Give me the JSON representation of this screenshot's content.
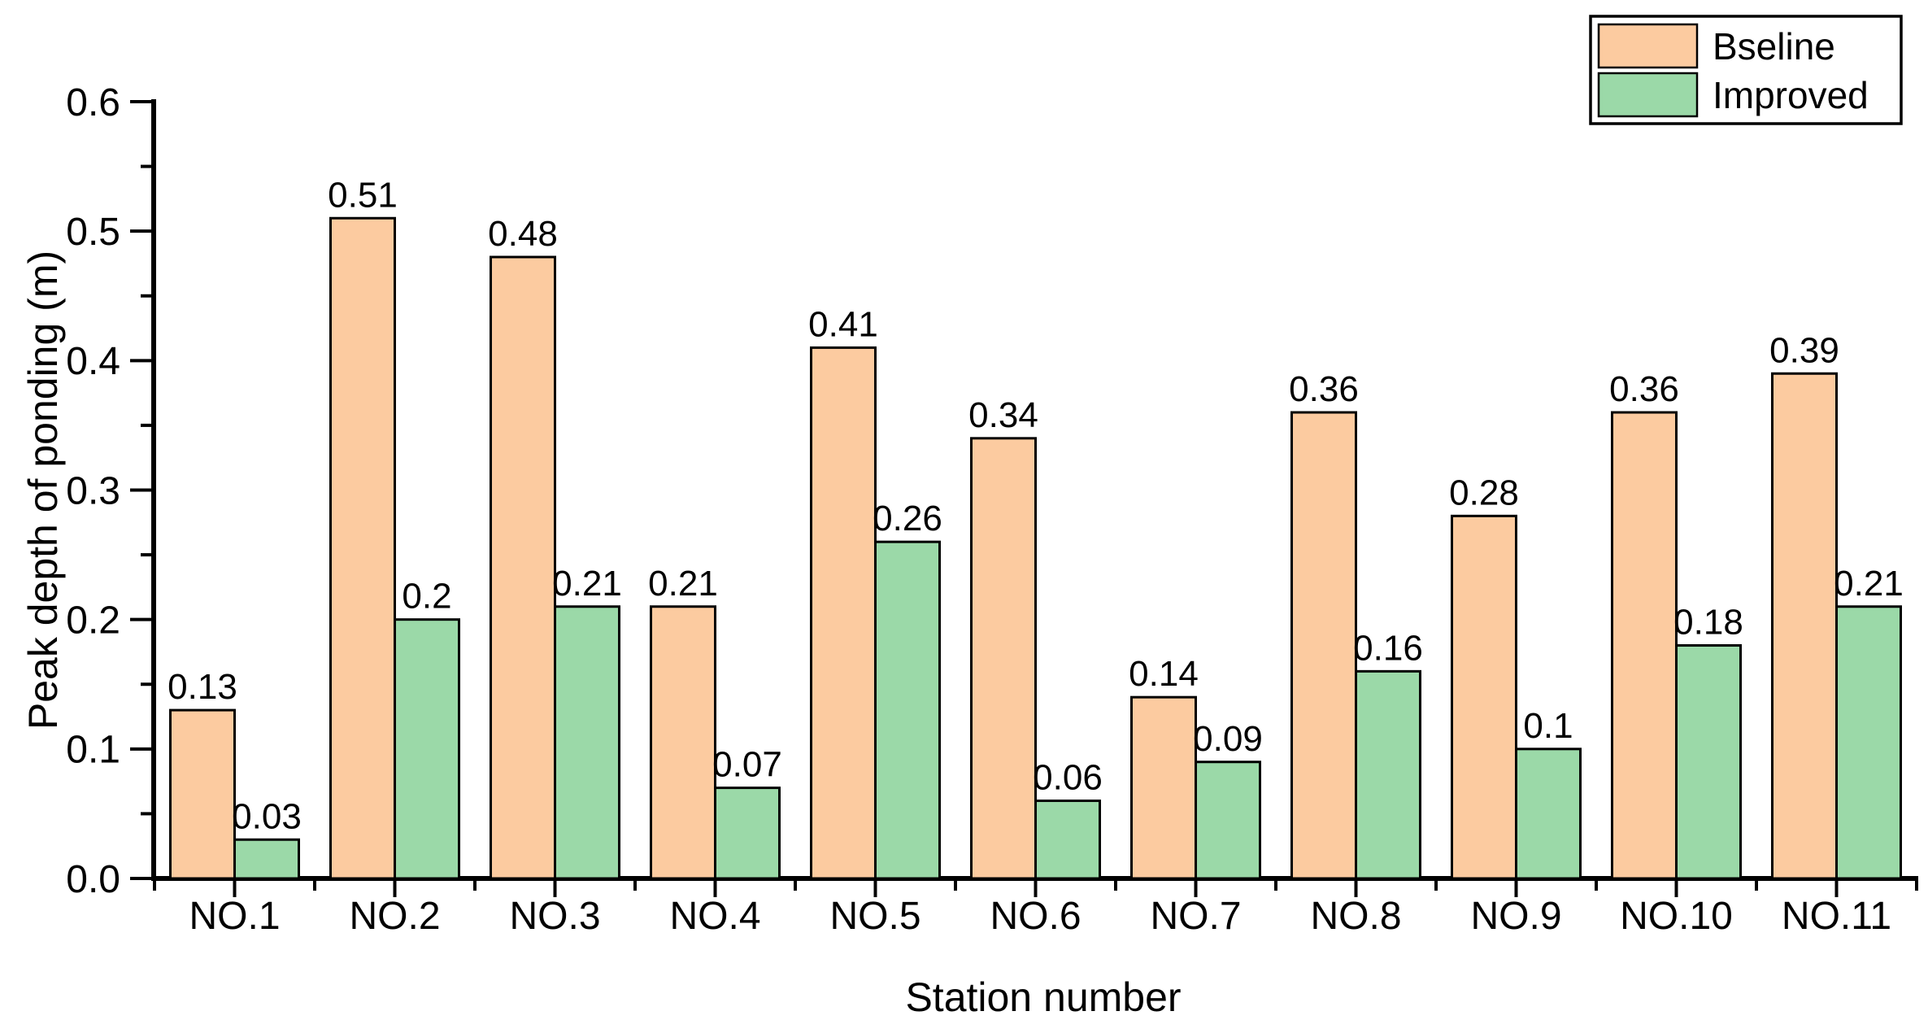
{
  "chart_data": {
    "type": "bar",
    "title": "",
    "xlabel": "Station number",
    "ylabel": "Peak depth of ponding (m)",
    "categories": [
      "NO.1",
      "NO.2",
      "NO.3",
      "NO.4",
      "NO.5",
      "NO.6",
      "NO.7",
      "NO.8",
      "NO.9",
      "NO.10",
      "NO.11"
    ],
    "series": [
      {
        "name": "Bseline",
        "color": "#FCCBA0",
        "values": [
          0.13,
          0.51,
          0.48,
          0.21,
          0.41,
          0.34,
          0.14,
          0.36,
          0.28,
          0.36,
          0.39
        ]
      },
      {
        "name": "Improved",
        "color": "#9BD9A8",
        "values": [
          0.03,
          0.2,
          0.21,
          0.07,
          0.26,
          0.06,
          0.09,
          0.16,
          0.1,
          0.18,
          0.21
        ]
      }
    ],
    "value_labels_shown": true,
    "ylim": [
      0,
      0.6
    ],
    "y_major_step": 0.1,
    "y_minor_step": 0.05,
    "y_tick_labels": [
      "0.0",
      "0.1",
      "0.2",
      "0.3",
      "0.4",
      "0.5",
      "0.6"
    ],
    "grid": "off",
    "legend_position": "top-right",
    "bar_outline_color": "#000000",
    "axis_color": "#000000",
    "background_color": "#FFFFFF"
  }
}
